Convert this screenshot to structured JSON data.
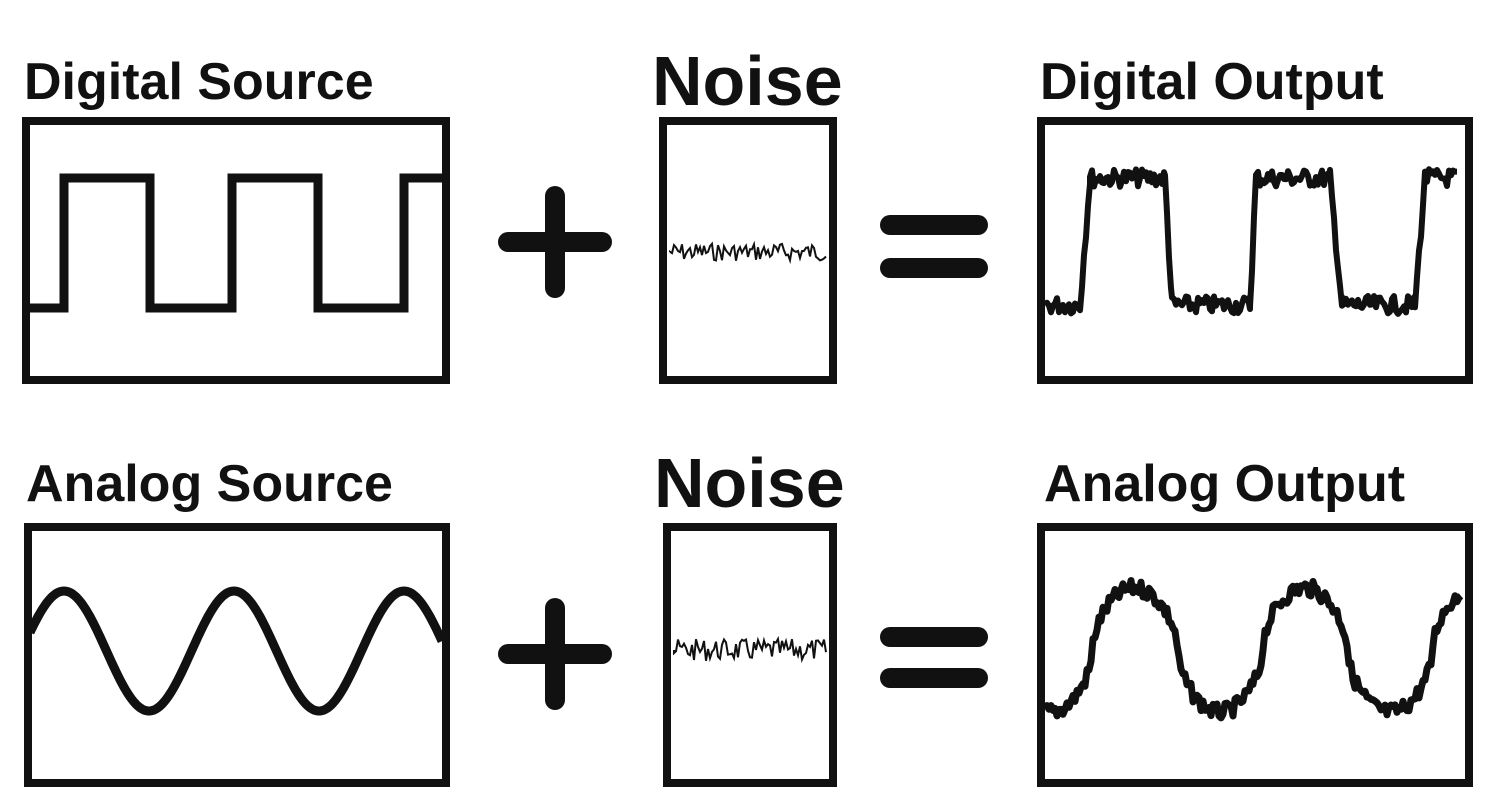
{
  "rows": [
    {
      "source_label": "Digital Source",
      "noise_label": "Noise",
      "output_label": "Digital Output",
      "source_wave": "square"
    },
    {
      "source_label": "Analog Source",
      "noise_label": "Noise",
      "output_label": "Analog Output",
      "source_wave": "sine"
    }
  ],
  "operators": {
    "plus": "plus-icon",
    "equals": "equals-icon"
  },
  "colors": {
    "ink": "#111111",
    "background": "#ffffff"
  }
}
